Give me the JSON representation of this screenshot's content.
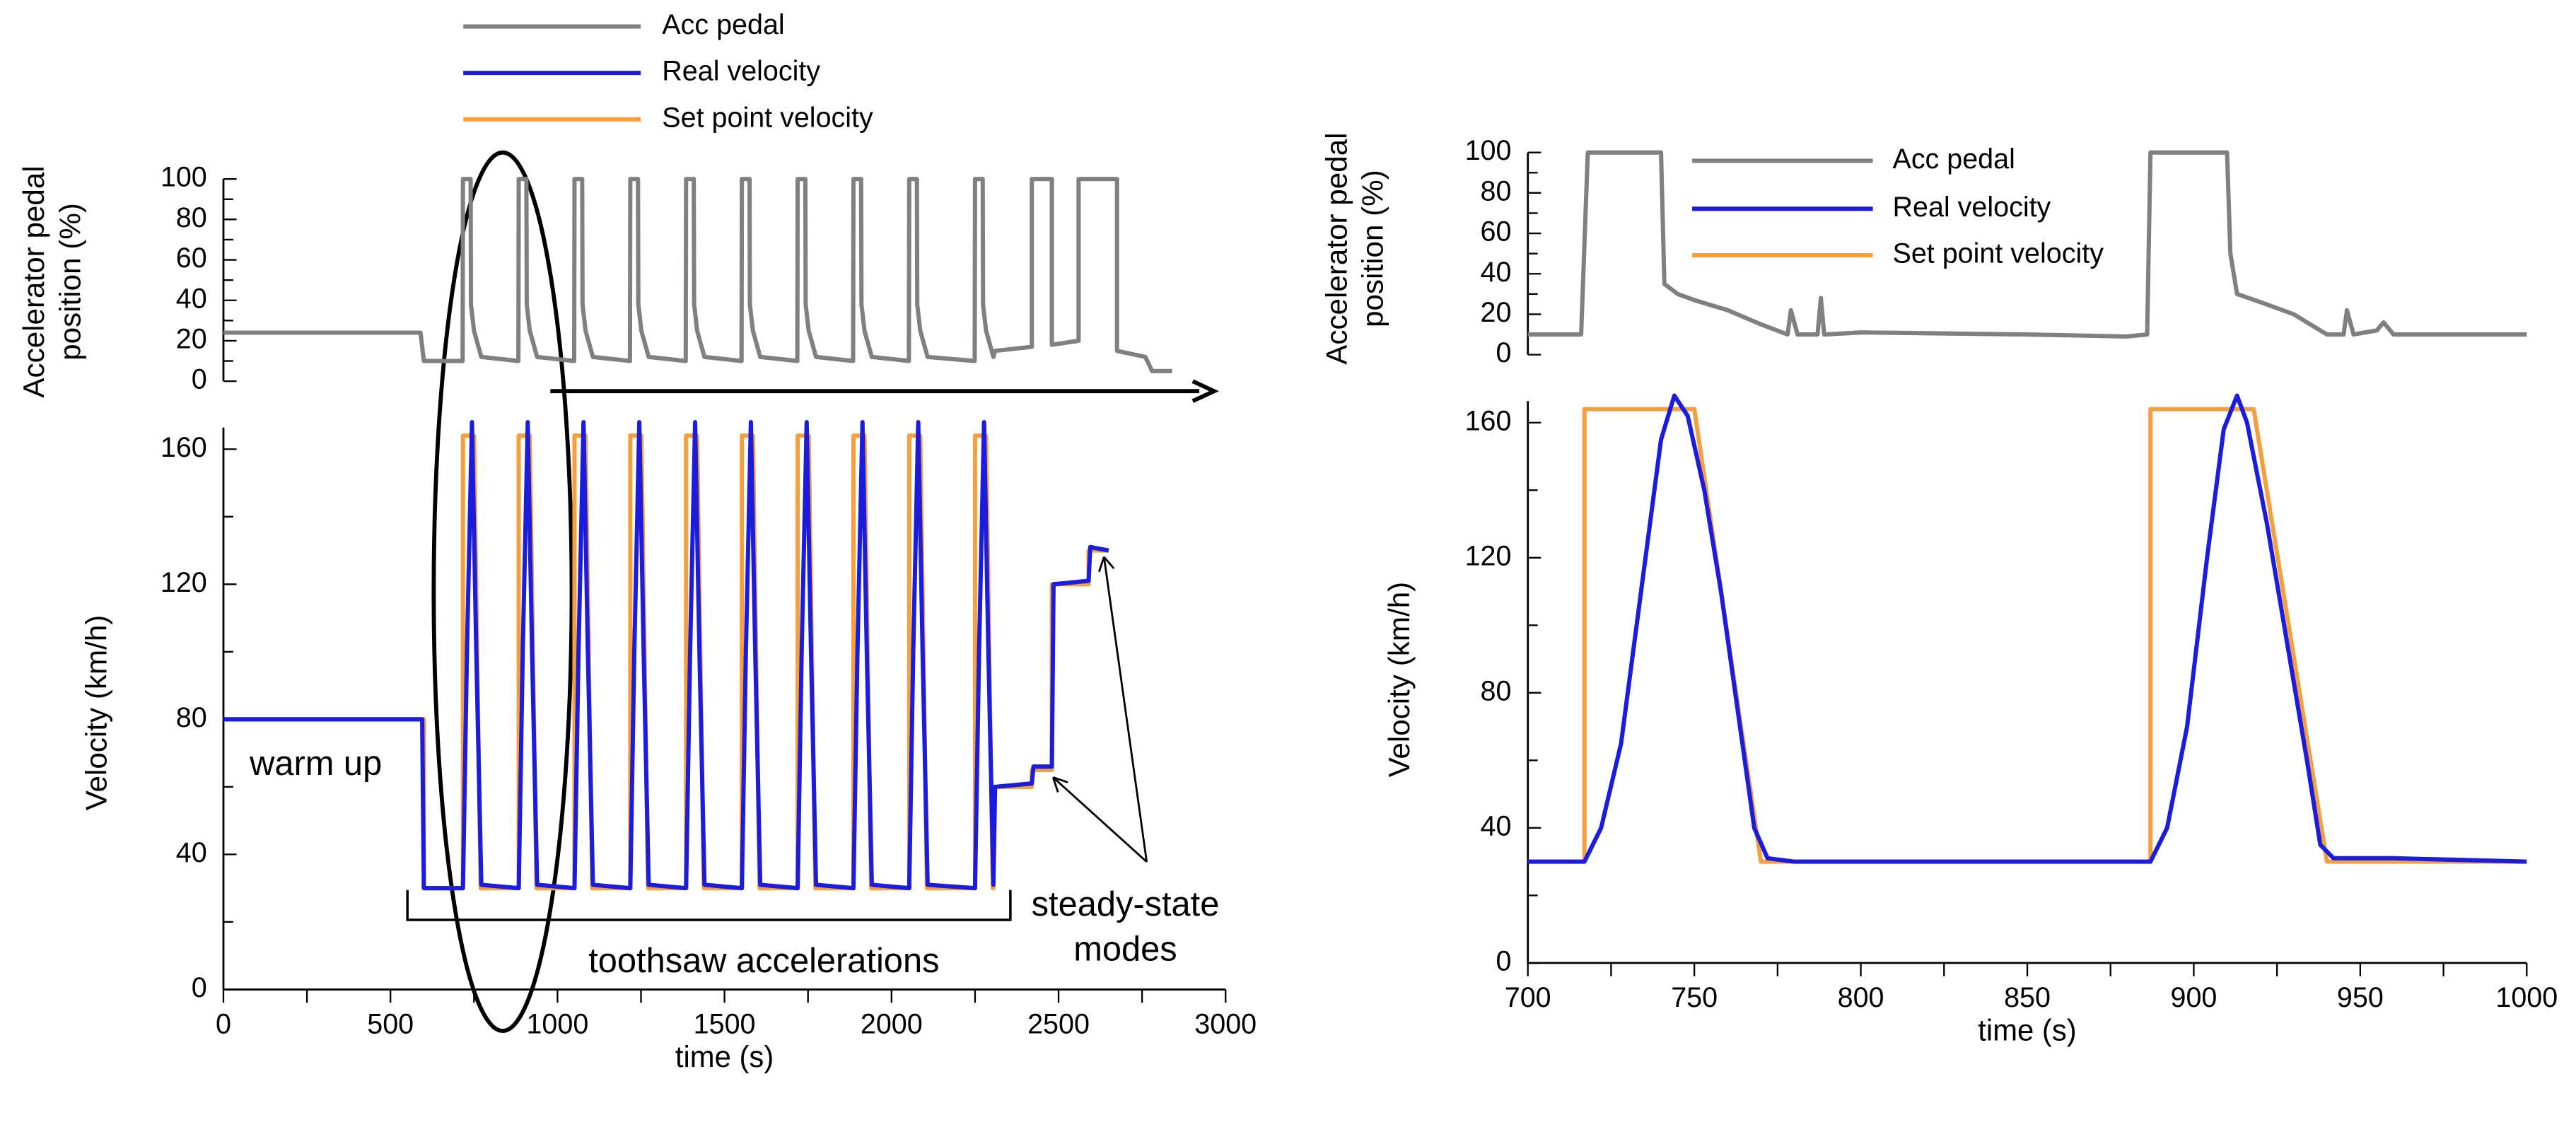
{
  "chart_data": [
    {
      "type": "line",
      "ylabel": [
        "Accelerator pedal",
        "position (%)"
      ],
      "xlim": [
        0,
        3000
      ],
      "ylim": [
        0,
        100
      ],
      "yticks": [
        0,
        20,
        40,
        60,
        80,
        100
      ],
      "series": [
        {
          "name": "Acc pedal",
          "color": "#808080",
          "x": [
            0,
            590,
            600,
            716,
            717,
            740,
            741,
            750,
            772,
            883,
            884,
            907,
            908,
            917,
            939,
            1050,
            1051,
            1074,
            1075,
            1084,
            1106,
            1217,
            1218,
            1241,
            1242,
            1251,
            1273,
            1384,
            1385,
            1408,
            1409,
            1418,
            1440,
            1551,
            1552,
            1575,
            1576,
            1585,
            1607,
            1718,
            1719,
            1742,
            1743,
            1752,
            1774,
            1885,
            1886,
            1909,
            1910,
            1919,
            1941,
            2052,
            2053,
            2076,
            2077,
            2086,
            2108,
            2249,
            2250,
            2273,
            2274,
            2283,
            2305,
            2310,
            2420,
            2420,
            2480,
            2480,
            2560,
            2560,
            2675,
            2675,
            2760,
            2780,
            2840
          ],
          "values": [
            24,
            24,
            10,
            10,
            100,
            100,
            38,
            25,
            12,
            10,
            100,
            100,
            38,
            25,
            12,
            10,
            100,
            100,
            38,
            25,
            12,
            10,
            100,
            100,
            38,
            25,
            12,
            10,
            100,
            100,
            38,
            25,
            12,
            10,
            100,
            100,
            38,
            25,
            12,
            10,
            100,
            100,
            38,
            25,
            12,
            10,
            100,
            100,
            38,
            25,
            12,
            10,
            100,
            100,
            38,
            25,
            12,
            10,
            100,
            100,
            38,
            25,
            12,
            15,
            17,
            100,
            100,
            18,
            20,
            100,
            100,
            15,
            12,
            5,
            5
          ]
        }
      ]
    },
    {
      "type": "line",
      "ylabel": [
        "Velocity (km/h)"
      ],
      "xlabel": "time (s)",
      "xlim": [
        0,
        3000
      ],
      "xticks": [
        0,
        500,
        1000,
        1500,
        2000,
        2500,
        3000
      ],
      "ylim": [
        0,
        160
      ],
      "yticks": [
        0,
        40,
        80,
        120,
        160
      ],
      "annotations": [
        "warm up",
        "toothsaw accelerations",
        "steady-state",
        "modes"
      ],
      "series": [
        {
          "name": "Real velocity",
          "color": "#1c1cdc",
          "x": [
            0,
            595,
            600,
            717,
            729,
            744,
            757,
            772,
            884,
            896,
            911,
            924,
            939,
            1051,
            1063,
            1078,
            1091,
            1106,
            1218,
            1230,
            1245,
            1258,
            1273,
            1385,
            1397,
            1412,
            1425,
            1440,
            1552,
            1564,
            1579,
            1592,
            1607,
            1719,
            1731,
            1746,
            1759,
            1774,
            1886,
            1898,
            1913,
            1926,
            1941,
            2053,
            2065,
            2080,
            2093,
            2108,
            2250,
            2262,
            2277,
            2290,
            2305,
            2310,
            2420,
            2425,
            2480,
            2485,
            2590,
            2595,
            2650
          ],
          "values": [
            80,
            80,
            30,
            30,
            100,
            168,
            100,
            31,
            30,
            100,
            168,
            100,
            31,
            30,
            100,
            168,
            100,
            31,
            30,
            100,
            168,
            100,
            31,
            30,
            100,
            168,
            100,
            31,
            30,
            100,
            168,
            100,
            31,
            30,
            100,
            168,
            100,
            31,
            30,
            100,
            168,
            100,
            31,
            30,
            100,
            168,
            100,
            31,
            30,
            100,
            168,
            100,
            31,
            60,
            61,
            66,
            66,
            120,
            121,
            131,
            130
          ]
        },
        {
          "name": "Set point velocity",
          "color": "#f5a040",
          "x": [
            0,
            600,
            600,
            717,
            717,
            750,
            770,
            884,
            884,
            917,
            937,
            1051,
            1051,
            1084,
            1104,
            1218,
            1218,
            1251,
            1271,
            1385,
            1385,
            1418,
            1438,
            1552,
            1552,
            1585,
            1605,
            1719,
            1719,
            1752,
            1772,
            1886,
            1886,
            1919,
            1939,
            2053,
            2053,
            2086,
            2106,
            2250,
            2250,
            2283,
            2303,
            2305,
            2305,
            2420,
            2420,
            2480,
            2480,
            2590,
            2590,
            2650
          ],
          "values": [
            80,
            80,
            30,
            30,
            164,
            164,
            30,
            30,
            164,
            164,
            30,
            30,
            164,
            164,
            30,
            30,
            164,
            164,
            30,
            30,
            164,
            164,
            30,
            30,
            164,
            164,
            30,
            30,
            164,
            164,
            30,
            30,
            164,
            164,
            30,
            30,
            164,
            164,
            30,
            30,
            164,
            164,
            30,
            30,
            60,
            60,
            65,
            65,
            120,
            120,
            130,
            130
          ]
        }
      ]
    },
    {
      "type": "line",
      "ylabel": [
        "Accelerator pedal",
        "position (%)"
      ],
      "xlim": [
        700,
        1000
      ],
      "ylim": [
        0,
        100
      ],
      "yticks": [
        0,
        20,
        40,
        60,
        80,
        100
      ],
      "series": [
        {
          "name": "Acc pedal",
          "color": "#808080",
          "x": [
            700,
            716,
            717,
            718,
            740,
            741,
            745,
            750,
            760,
            770,
            778,
            779,
            781,
            787,
            788,
            789,
            800,
            850,
            880,
            886,
            887,
            910,
            911,
            913,
            920,
            930,
            937,
            940,
            945,
            946,
            948,
            955,
            957,
            960,
            970,
            1000
          ],
          "values": [
            10,
            10,
            55,
            100,
            100,
            35,
            30,
            27,
            22,
            15,
            10,
            22,
            10,
            10,
            28,
            10,
            11,
            10,
            9,
            10,
            100,
            100,
            50,
            30,
            26,
            20,
            13,
            10,
            10,
            22,
            10,
            12,
            16,
            10,
            10,
            10
          ]
        }
      ]
    },
    {
      "type": "line",
      "ylabel": [
        "Velocity (km/h)"
      ],
      "xlabel": "time (s)",
      "xlim": [
        700,
        1000
      ],
      "xticks": [
        700,
        750,
        800,
        850,
        900,
        950,
        1000
      ],
      "ylim": [
        0,
        160
      ],
      "yticks": [
        0,
        40,
        80,
        120,
        160
      ],
      "series": [
        {
          "name": "Real velocity",
          "color": "#1c1cdc",
          "x": [
            700,
            717,
            722,
            728,
            734,
            740,
            744,
            748,
            753,
            758,
            763,
            768,
            772,
            780,
            800,
            850,
            887,
            892,
            898,
            904,
            909,
            913,
            916,
            922,
            928,
            934,
            938,
            942,
            960,
            1000
          ],
          "values": [
            30,
            30,
            40,
            65,
            110,
            155,
            168,
            162,
            140,
            110,
            75,
            40,
            31,
            30,
            30,
            30,
            30,
            40,
            70,
            120,
            158,
            168,
            160,
            130,
            95,
            60,
            35,
            31,
            31,
            30
          ]
        },
        {
          "name": "Set point velocity",
          "color": "#f5a040",
          "x": [
            700,
            717,
            717,
            750,
            770,
            887,
            887,
            918,
            940,
            1000
          ],
          "values": [
            30,
            30,
            164,
            164,
            30,
            30,
            164,
            164,
            30,
            30
          ]
        }
      ]
    }
  ]
}
